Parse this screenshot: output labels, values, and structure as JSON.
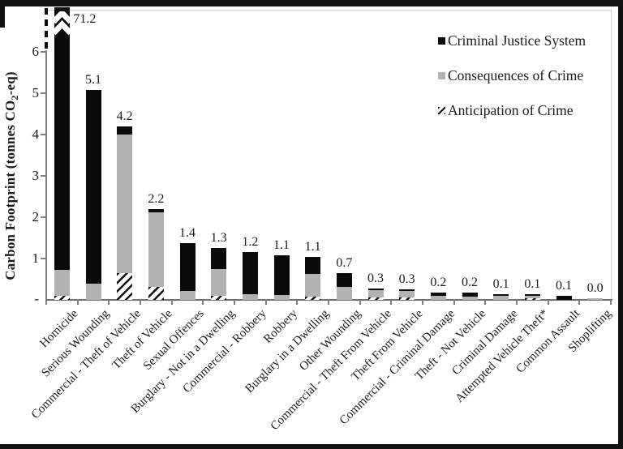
{
  "figure": {
    "ylabel_pre": "Carbon Footprint (tonnes CO",
    "ylabel_sub": "2",
    "ylabel_post": "-eq)"
  },
  "chart_data": {
    "type": "bar",
    "stacked": true,
    "grid": false,
    "legend_position": "top-right",
    "ylabel": "Carbon Footprint (tonnes CO2-eq)",
    "ylim": [
      0,
      7
    ],
    "yticks": [
      1,
      2,
      3,
      4,
      5,
      6
    ],
    "zero_tick_label": "-",
    "axis_break": {
      "category": "Homicide",
      "true_total": 71.2,
      "note": "y-axis broken above 6; bar clipped with white chevrons"
    },
    "categories": [
      "Homicide",
      "Serious Wounding",
      "Commercial - Theft of Vehicle",
      "Theft of Vehicle",
      "Sexual Offences",
      "Burglary - Not in a Dwelling",
      "Commercial - Robbery",
      "Robbery",
      "Burglary in a Dwelling",
      "Other Wounding",
      "Commercial - Theft From Vehicle",
      "Theft From Vehicle",
      "Commercial - Criminal Damage",
      "Theft - Not Vehicle",
      "Criminal Damage",
      "Attempted Vehicle Theft*",
      "Common Assault",
      "Shoplifting"
    ],
    "totals": [
      71.2,
      5.1,
      4.2,
      2.2,
      1.4,
      1.3,
      1.2,
      1.1,
      1.1,
      0.7,
      0.3,
      0.3,
      0.2,
      0.2,
      0.1,
      0.1,
      0.1,
      0.0
    ],
    "value_labels": [
      "71.2",
      "5.1",
      "4.2",
      "2.2",
      "1.4",
      "1.3",
      "1.2",
      "1.1",
      "1.1",
      "0.7",
      "0.3",
      "0.3",
      "0.2",
      "0.2",
      "0.1",
      "0.1",
      "0.1",
      "0.0"
    ],
    "series": [
      {
        "name": "Anticipation of Crime",
        "key": "anticipation",
        "style": "diagonal-hatch",
        "values": [
          0.1,
          0,
          0.65,
          0.32,
          0,
          0.1,
          0,
          0,
          0.07,
          0,
          0.05,
          0.05,
          0,
          0,
          0,
          0.04,
          0,
          0
        ]
      },
      {
        "name": "Consequences of Crime",
        "key": "consequences",
        "style": "solid",
        "color": "#b2b2b2",
        "values": [
          0.63,
          0.4,
          3.35,
          1.8,
          0.22,
          0.65,
          0.14,
          0.12,
          0.56,
          0.31,
          0.19,
          0.16,
          0.1,
          0.07,
          0.09,
          0.06,
          0,
          0.04
        ]
      },
      {
        "name": "Criminal Justice System",
        "key": "cjs",
        "style": "solid",
        "color": "#0b0b0b",
        "values": [
          70.47,
          4.67,
          0.2,
          0.08,
          1.15,
          0.51,
          1.02,
          0.96,
          0.4,
          0.34,
          0.04,
          0.04,
          0.08,
          0.1,
          0.04,
          0.04,
          0.1,
          0
        ]
      }
    ],
    "legend": [
      {
        "label": "Criminal Justice System",
        "swatch": "black"
      },
      {
        "label": "Consequences of Crime",
        "swatch": "gray"
      },
      {
        "label": "Anticipation of Crime",
        "swatch": "hatch"
      }
    ],
    "colors": {
      "cjs": "#0b0b0b",
      "consequences": "#b2b2b2",
      "hatch_fg": "#111111",
      "axis": "#7f7f7f",
      "text": "#1a1a1a"
    }
  }
}
